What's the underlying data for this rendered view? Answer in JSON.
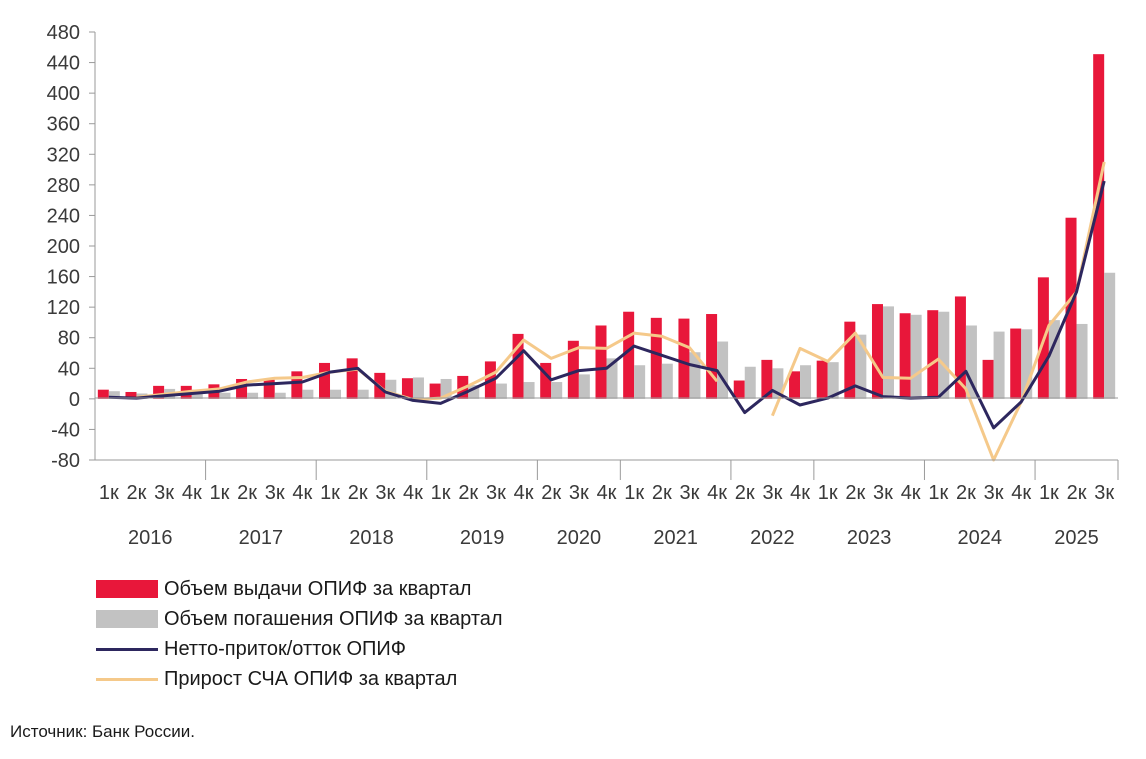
{
  "chart_data": {
    "type": "bar",
    "title": "",
    "xlabel": "",
    "ylabel": "",
    "ylim": [
      -80,
      480
    ],
    "yticks": [
      480,
      440,
      400,
      360,
      320,
      280,
      240,
      200,
      160,
      120,
      80,
      40,
      0,
      -40,
      -80
    ],
    "categories": [
      "1к",
      "2к",
      "3к",
      "4к",
      "1к",
      "2к",
      "3к",
      "4к",
      "1к",
      "2к",
      "3к",
      "4к",
      "1к",
      "2к",
      "3к",
      "4к",
      "2к",
      "3к",
      "4к",
      "1к",
      "2к",
      "3к",
      "4к",
      "2к",
      "3к",
      "4к",
      "1к",
      "2к",
      "3к",
      "4к",
      "1к",
      "2к",
      "3к",
      "4к",
      "1к",
      "2к",
      "3к"
    ],
    "years": [
      {
        "label": "2016",
        "count": 4
      },
      {
        "label": "2017",
        "count": 4
      },
      {
        "label": "2018",
        "count": 4
      },
      {
        "label": "2019",
        "count": 4
      },
      {
        "label": "2020",
        "count": 3
      },
      {
        "label": "2021",
        "count": 4
      },
      {
        "label": "2022",
        "count": 3
      },
      {
        "label": "2023",
        "count": 4
      },
      {
        "label": "2024",
        "count": 4
      },
      {
        "label": "2025",
        "count": 3
      }
    ],
    "series": [
      {
        "name": "Объем выдачи ОПИФ за квартал",
        "kind": "bar",
        "color": "#e8173a",
        "values": [
          12,
          9,
          17,
          17,
          19,
          26,
          25,
          36,
          47,
          53,
          34,
          27,
          20,
          30,
          49,
          85,
          47,
          76,
          96,
          114,
          106,
          105,
          111,
          24,
          51,
          36,
          50,
          101,
          124,
          112,
          116,
          134,
          51,
          92,
          159,
          237,
          451
        ]
      },
      {
        "name": "Объем погашения ОПИФ за квартал",
        "kind": "bar",
        "color": "#c2c2c2",
        "values": [
          10,
          7,
          13,
          12,
          8,
          8,
          8,
          12,
          12,
          12,
          25,
          28,
          26,
          18,
          20,
          22,
          22,
          32,
          53,
          44,
          46,
          61,
          75,
          42,
          40,
          44,
          48,
          84,
          121,
          110,
          114,
          96,
          88,
          91,
          103,
          98,
          165
        ]
      },
      {
        "name": "Нетто-приток/отток ОПИФ",
        "kind": "line",
        "color": "#2d275e",
        "values": [
          2,
          1,
          4,
          7,
          10,
          18,
          20,
          22,
          35,
          40,
          9,
          -2,
          -6,
          10,
          27,
          63,
          25,
          37,
          40,
          69,
          57,
          45,
          37,
          -18,
          11,
          -8,
          1,
          17,
          3,
          1,
          2,
          36,
          -38,
          -4,
          56,
          140,
          285
        ]
      },
      {
        "name": "Прирост СЧА ОПИФ за квартал",
        "kind": "line",
        "color": "#f5c98a",
        "values": [
          null,
          2,
          6,
          10,
          13,
          22,
          27,
          28,
          35,
          39,
          10,
          -1,
          1,
          17,
          35,
          77,
          53,
          67,
          66,
          86,
          82,
          67,
          23,
          null,
          -22,
          66,
          49,
          86,
          28,
          27,
          52,
          13,
          -80,
          -4,
          96,
          140,
          310
        ]
      }
    ],
    "legend_position": "bottom-left",
    "grid": false
  },
  "source_note": "Источник: Банк России."
}
